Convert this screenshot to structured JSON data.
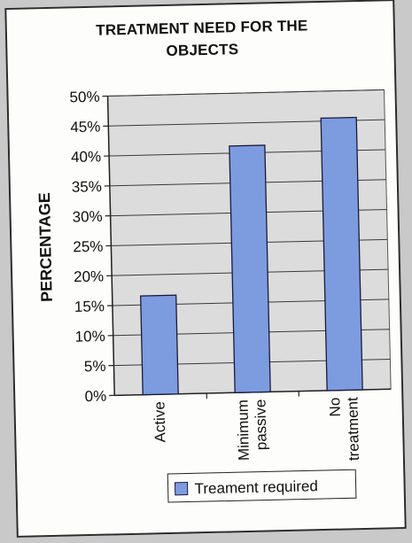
{
  "chart_data": {
    "type": "bar",
    "title_lines": [
      "TREATMENT NEED FOR THE",
      "OBJECTS"
    ],
    "ylabel": "PERCENTAGE",
    "categories": [
      [
        "Active"
      ],
      [
        "Minimum",
        "passive"
      ],
      [
        "No",
        "treatment"
      ]
    ],
    "series": [
      {
        "name": "Treament required",
        "values": [
          16.5,
          41.2,
          45.5
        ]
      }
    ],
    "ylim": [
      0,
      50
    ],
    "yticks": [
      "0%",
      "5%",
      "10%",
      "15%",
      "20%",
      "25%",
      "30%",
      "35%",
      "40%",
      "45%",
      "50%"
    ],
    "grid": true,
    "legend_position": "bottom",
    "colors": {
      "bar": "#7d9ce0",
      "bar_edge": "#1a1a3a",
      "plot_bg": "#dcdcdc",
      "grid": "#3a3a3a"
    }
  }
}
